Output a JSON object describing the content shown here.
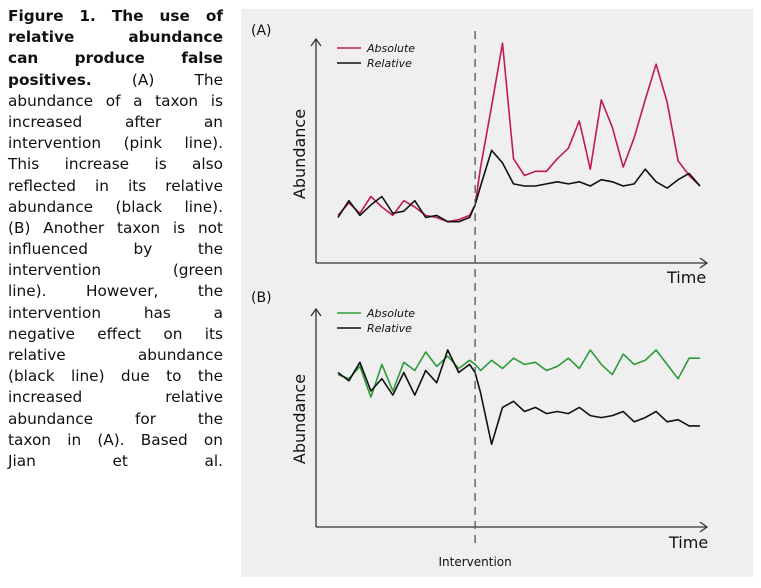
{
  "caption": {
    "lines": [
      {
        "segments": [
          {
            "text": "Figure 1. The use of",
            "bold": true
          }
        ]
      },
      {
        "segments": [
          {
            "text": "relative abundance",
            "bold": true
          }
        ]
      },
      {
        "segments": [
          {
            "text": "can produce false",
            "bold": true
          }
        ]
      },
      {
        "segments": [
          {
            "text": "positives.",
            "bold": true
          },
          {
            "text": " (A) The",
            "bold": false
          }
        ]
      },
      {
        "segments": [
          {
            "text": "abundance of a taxon is",
            "bold": false
          }
        ]
      },
      {
        "segments": [
          {
            "text": "increased after an",
            "bold": false
          }
        ]
      },
      {
        "segments": [
          {
            "text": "intervention (pink line).",
            "bold": false
          }
        ]
      },
      {
        "segments": [
          {
            "text": "This increase is also",
            "bold": false
          }
        ]
      },
      {
        "segments": [
          {
            "text": "reflected in its relative",
            "bold": false
          }
        ]
      },
      {
        "segments": [
          {
            "text": "abundance (black line).",
            "bold": false
          }
        ]
      },
      {
        "segments": [
          {
            "text": "(B) Another taxon is not",
            "bold": false
          }
        ]
      },
      {
        "segments": [
          {
            "text": "influenced by the",
            "bold": false
          }
        ]
      },
      {
        "segments": [
          {
            "text": "intervention (green",
            "bold": false
          }
        ]
      },
      {
        "segments": [
          {
            "text": "line). However, the",
            "bold": false
          }
        ]
      },
      {
        "segments": [
          {
            "text": "intervention has a",
            "bold": false
          }
        ]
      },
      {
        "segments": [
          {
            "text": "negative effect on its",
            "bold": false
          }
        ]
      },
      {
        "segments": [
          {
            "text": "relative abundance",
            "bold": false
          }
        ]
      },
      {
        "segments": [
          {
            "text": "(black line) due to the",
            "bold": false
          }
        ]
      },
      {
        "segments": [
          {
            "text": "increased relative",
            "bold": false
          }
        ]
      },
      {
        "segments": [
          {
            "text": "abundance for the",
            "bold": false
          }
        ]
      },
      {
        "segments": [
          {
            "text": "taxon in (A). Based on",
            "bold": false
          }
        ]
      },
      {
        "segments": [
          {
            "text": "Jian et al.",
            "bold": false
          }
        ]
      }
    ]
  },
  "figure": {
    "intervention_label": "Intervention",
    "colors": {
      "absolute_A": "#c2185b",
      "absolute_B": "#2e9b3a",
      "relative": "#111111",
      "axis": "#333333",
      "background": "#efefef"
    }
  },
  "chart_data": [
    {
      "type": "line",
      "panel_label": "(A)",
      "xlabel": "Time",
      "ylabel": "Abundance",
      "legend": "top-left",
      "grid": false,
      "intervention_x": 13.5,
      "xlim": [
        0,
        35
      ],
      "ylim": [
        0,
        10
      ],
      "series": [
        {
          "name": "Absolute",
          "color": "#c2185b",
          "x": [
            1,
            2,
            3,
            4,
            5,
            6,
            7,
            8,
            9,
            10,
            11,
            12,
            13,
            13.5,
            14,
            15,
            16,
            17,
            18,
            19,
            20,
            21,
            22,
            23,
            24,
            25,
            26,
            27,
            28,
            29,
            30,
            31,
            32,
            33,
            34
          ],
          "y": [
            1.6,
            2.2,
            1.7,
            2.5,
            2.0,
            1.6,
            2.3,
            2.0,
            1.6,
            1.5,
            1.3,
            1.4,
            1.6,
            2.1,
            3.9,
            6.8,
            9.8,
            4.3,
            3.5,
            3.7,
            3.7,
            4.3,
            4.8,
            6.1,
            3.8,
            7.1,
            5.8,
            3.9,
            5.3,
            7.1,
            8.8,
            7.0,
            4.2,
            3.5,
            3.0
          ]
        },
        {
          "name": "Relative",
          "color": "#111111",
          "x": [
            1,
            2,
            3,
            4,
            5,
            6,
            7,
            8,
            9,
            10,
            11,
            12,
            13,
            13.5,
            14,
            15,
            16,
            17,
            18,
            19,
            20,
            21,
            22,
            23,
            24,
            25,
            26,
            27,
            28,
            29,
            30,
            31,
            32,
            33,
            34
          ],
          "y": [
            1.5,
            2.3,
            1.6,
            2.1,
            2.5,
            1.7,
            1.8,
            2.3,
            1.5,
            1.6,
            1.3,
            1.3,
            1.5,
            2.1,
            3.0,
            4.7,
            4.1,
            3.1,
            3.0,
            3.0,
            3.1,
            3.2,
            3.1,
            3.2,
            3.0,
            3.3,
            3.2,
            3.0,
            3.1,
            3.8,
            3.2,
            2.9,
            3.3,
            3.6,
            3.0
          ]
        }
      ]
    },
    {
      "type": "line",
      "panel_label": "(B)",
      "xlabel": "Time",
      "ylabel": "Abundance",
      "legend": "top-left",
      "grid": false,
      "intervention_x": 13.5,
      "xlim": [
        0,
        35
      ],
      "ylim": [
        0,
        10
      ],
      "series": [
        {
          "name": "Absolute",
          "color": "#2e9b3a",
          "x": [
            1,
            2,
            3,
            4,
            5,
            6,
            7,
            8,
            9,
            10,
            11,
            12,
            13,
            13.5,
            14,
            15,
            16,
            17,
            18,
            19,
            20,
            21,
            22,
            23,
            24,
            25,
            26,
            27,
            28,
            29,
            30,
            31,
            32,
            33,
            34
          ],
          "y": [
            6.8,
            6.6,
            7.2,
            5.7,
            7.3,
            6.0,
            7.4,
            7.0,
            7.9,
            7.2,
            7.7,
            7.1,
            7.5,
            7.3,
            7.0,
            7.5,
            7.1,
            7.6,
            7.3,
            7.4,
            7.0,
            7.2,
            7.6,
            7.1,
            8.0,
            7.3,
            6.8,
            7.8,
            7.3,
            7.5,
            8.0,
            7.3,
            6.6,
            7.6,
            7.6
          ]
        },
        {
          "name": "Relative",
          "color": "#111111",
          "x": [
            1,
            2,
            3,
            4,
            5,
            6,
            7,
            8,
            9,
            10,
            11,
            12,
            13,
            13.5,
            14,
            15,
            16,
            17,
            18,
            19,
            20,
            21,
            22,
            23,
            24,
            25,
            26,
            27,
            28,
            29,
            30,
            31,
            32,
            33,
            34
          ],
          "y": [
            6.9,
            6.5,
            7.4,
            6.0,
            6.6,
            5.8,
            6.9,
            5.8,
            7.0,
            6.4,
            8.0,
            6.9,
            7.3,
            6.9,
            5.9,
            3.4,
            5.2,
            5.5,
            5.0,
            5.2,
            4.9,
            5.0,
            4.9,
            5.2,
            4.8,
            4.7,
            4.8,
            5.0,
            4.5,
            4.7,
            5.0,
            4.5,
            4.6,
            4.3,
            4.3
          ]
        }
      ]
    }
  ]
}
